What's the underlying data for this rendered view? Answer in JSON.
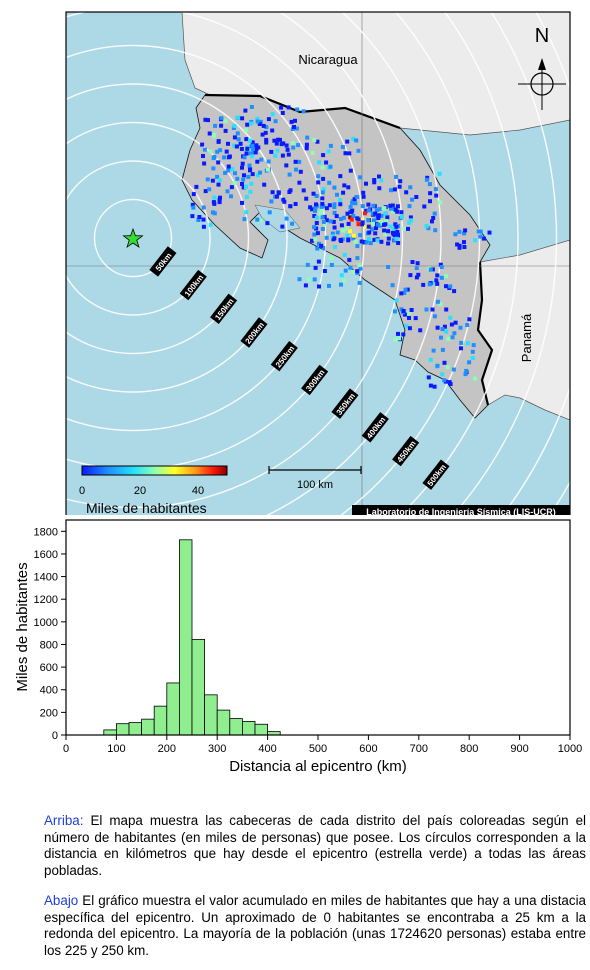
{
  "map": {
    "labels": {
      "nicaragua": "Nicaragua",
      "panama": "Panamá",
      "north": "N"
    },
    "credit": "Laboratorio de Ingeniería Sísmica (LIS-UCR)",
    "scale_bar_label": "100 km",
    "ring_labels": [
      "50km",
      "100km",
      "150km",
      "200km",
      "250km",
      "300km",
      "350km",
      "400km",
      "450km",
      "500km"
    ],
    "colorbar": {
      "ticks": [
        "0",
        "20",
        "40"
      ],
      "title": "Miles de habitantes",
      "colors": [
        "#0a1aff",
        "#1f8fff",
        "#26e1ff",
        "#8dffb0",
        "#ffff26",
        "#ff9a1a",
        "#ff1a0a",
        "#8c0000"
      ]
    },
    "colors": {
      "sea": "#add8e6",
      "land_other": "#ececec",
      "land_cr": "#c4c4c4",
      "epicenter": "#33dd33"
    }
  },
  "chart_data": {
    "type": "bar",
    "xlabel": "Distancia al epicentro (km)",
    "ylabel": "Miles de habitantes",
    "xlim": [
      0,
      1000
    ],
    "ylim": [
      0,
      1900
    ],
    "xticks": [
      0,
      100,
      200,
      300,
      400,
      500,
      600,
      700,
      800,
      900,
      1000
    ],
    "yticks": [
      0,
      200,
      400,
      600,
      800,
      1000,
      1200,
      1400,
      1600,
      1800
    ],
    "bin_width": 25,
    "bin_starts": [
      75,
      100,
      125,
      150,
      175,
      200,
      225,
      250,
      275,
      300,
      325,
      350,
      375,
      400
    ],
    "values": [
      45,
      100,
      110,
      140,
      255,
      460,
      1725,
      845,
      355,
      220,
      145,
      120,
      95,
      30
    ],
    "bar_color": "#90ee90"
  },
  "captions": {
    "top": {
      "tag": "Arriba:",
      "text": " El mapa muestra las cabeceras de cada distrito del país coloreadas según el número de habitantes (en miles de personas) que posee. Los círculos corresponden a la distancia en kilómetros que hay desde el epicentro (estrella verde) a todas las áreas pobladas."
    },
    "bottom": {
      "tag": "Abajo",
      "text": " El gráfico muestra el valor acumulado en miles de habitantes que hay a una distacia específica del epicentro. Un aproximado de 0 habitantes se encontraba a 25 km a la redonda del epicentro. La mayoría de la población (unas 1724620 personas) estaba entre los 225 y 250 km."
    }
  }
}
